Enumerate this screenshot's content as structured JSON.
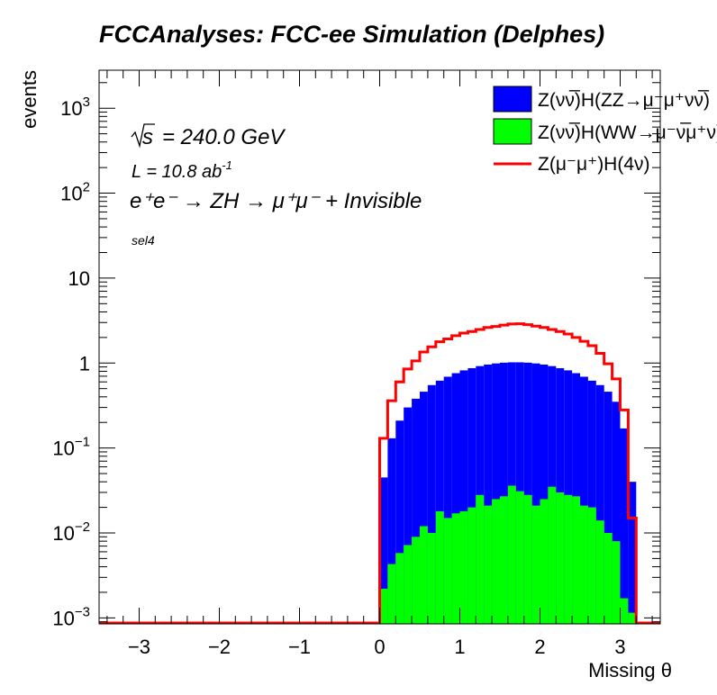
{
  "chart_data": {
    "type": "histogram",
    "title": "FCCAnalyses: FCC-ee Simulation (Delphes)",
    "xlabel": "Missing θ",
    "ylabel": "events",
    "xlim": [
      -3.5,
      3.5
    ],
    "ylim": [
      0.00085,
      2800
    ],
    "yscale": "log",
    "x_ticks": [
      -3,
      -2,
      -1,
      0,
      1,
      2,
      3
    ],
    "x_tick_labels": [
      "−3",
      "−2",
      "−1",
      "0",
      "1",
      "2",
      "3"
    ],
    "y_ticks": [
      {
        "value": 0.001,
        "base": "10",
        "exp": "−3"
      },
      {
        "value": 0.01,
        "base": "10",
        "exp": "−2"
      },
      {
        "value": 0.1,
        "base": "10",
        "exp": "−1"
      },
      {
        "value": 1,
        "base": "1",
        "exp": ""
      },
      {
        "value": 10,
        "base": "10",
        "exp": ""
      },
      {
        "value": 100,
        "base": "10",
        "exp": "2"
      },
      {
        "value": 1000,
        "base": "10",
        "exp": "3"
      }
    ],
    "annotations": {
      "sqrt_s": "= 240.0 GeV",
      "lumi": "L = 10.8 ab",
      "lumi_exp": "-1",
      "process": "e⁺e⁻ → ZH → μ⁺μ⁻ + Invisible",
      "selection": "sel4"
    },
    "bin_edges": [
      0.0,
      0.1,
      0.2,
      0.3,
      0.4,
      0.5,
      0.6,
      0.7,
      0.8,
      0.9,
      1.0,
      1.1,
      1.2,
      1.3,
      1.4,
      1.5,
      1.6,
      1.7,
      1.8,
      1.9,
      2.0,
      2.1,
      2.2,
      2.3,
      2.4,
      2.5,
      2.6,
      2.7,
      2.8,
      2.9,
      3.0,
      3.1,
      3.2
    ],
    "series": [
      {
        "name": "Z(νν̅)H(ZZ→μ⁻μ⁺νν̅)",
        "style": "filled",
        "color": "#0000ff",
        "values": [
          0.045,
          0.13,
          0.21,
          0.3,
          0.38,
          0.46,
          0.55,
          0.62,
          0.69,
          0.76,
          0.82,
          0.87,
          0.92,
          0.96,
          0.99,
          1.01,
          1.02,
          1.02,
          1.01,
          0.99,
          0.96,
          0.92,
          0.87,
          0.82,
          0.76,
          0.69,
          0.62,
          0.55,
          0.46,
          0.35,
          0.17,
          0.04
        ]
      },
      {
        "name": "Z(νν̅)H(WW→μ⁻ν̅μ⁺ν)",
        "style": "filled",
        "color": "#00ff00",
        "values": [
          0.0022,
          0.0043,
          0.0058,
          0.0072,
          0.009,
          0.012,
          0.01,
          0.018,
          0.015,
          0.017,
          0.018,
          0.02,
          0.028,
          0.021,
          0.025,
          0.027,
          0.036,
          0.031,
          0.028,
          0.021,
          0.025,
          0.035,
          0.03,
          0.028,
          0.027,
          0.021,
          0.02,
          0.014,
          0.01,
          0.008,
          0.0017,
          0.00115
        ]
      },
      {
        "name": "Z(μ⁻μ⁺)H(4ν)",
        "style": "line",
        "color": "#ff0000",
        "values": [
          0.13,
          0.36,
          0.6,
          0.85,
          1.06,
          1.35,
          1.55,
          1.78,
          1.92,
          2.1,
          2.25,
          2.35,
          2.48,
          2.62,
          2.7,
          2.8,
          2.88,
          2.9,
          2.83,
          2.72,
          2.62,
          2.48,
          2.35,
          2.2,
          2.0,
          1.8,
          1.6,
          1.3,
          0.98,
          0.65,
          0.28,
          0.015
        ]
      }
    ]
  }
}
